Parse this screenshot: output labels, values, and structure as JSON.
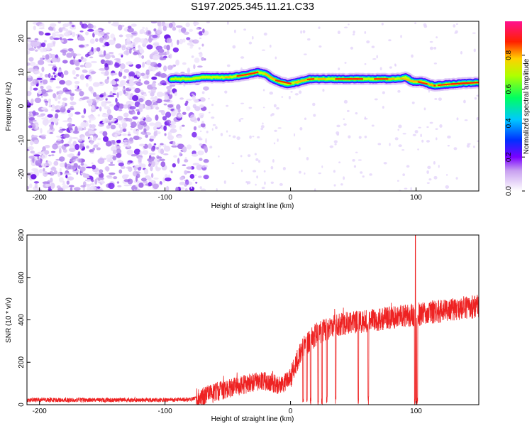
{
  "title": "S197.2025.345.11.21.C33",
  "chart_data": [
    {
      "type": "heatmap",
      "xlabel": "Height of straight line (km)",
      "ylabel": "Frequency (Hz)",
      "xlim": [
        -210,
        150
      ],
      "ylim": [
        -25,
        25
      ],
      "xticks": [
        -200,
        -100,
        0,
        100
      ],
      "yticks": [
        -20,
        -10,
        0,
        10,
        20
      ],
      "colorbar": {
        "label": "Normalized spectral amplitude",
        "ticks": [
          0.0,
          0.2,
          0.4,
          0.6,
          0.8
        ],
        "range": [
          0,
          1
        ]
      },
      "noise_region_x": [
        -210,
        -77
      ],
      "signal_ridge": {
        "x": [
          -95,
          -80,
          -70,
          -60,
          -50,
          -40,
          -32,
          -26,
          -20,
          -14,
          -8,
          -2,
          5,
          15,
          30,
          50,
          70,
          85,
          92,
          96,
          100,
          104,
          110,
          115,
          120,
          128,
          140,
          150
        ],
        "freq": [
          8,
          8,
          8.5,
          8.5,
          8.5,
          9,
          9.5,
          10,
          9.5,
          8,
          7,
          6.5,
          7,
          8,
          8,
          8,
          8,
          8,
          8.5,
          7.5,
          7,
          7.3,
          6.5,
          6,
          6.3,
          6.5,
          6.8,
          7
        ]
      }
    },
    {
      "type": "line",
      "xlabel": "Height of straight line (km)",
      "ylabel": "SNR (10 * v/v)",
      "xlim": [
        -210,
        150
      ],
      "ylim": [
        0,
        800
      ],
      "xticks": [
        -200,
        -100,
        0,
        100
      ],
      "yticks": [
        0,
        200,
        400,
        600,
        800
      ],
      "color": "#ee2222",
      "trend": {
        "x": [
          -210,
          -150,
          -100,
          -80,
          -70,
          -50,
          -30,
          -20,
          -10,
          -5,
          0,
          5,
          10,
          20,
          30,
          40,
          60,
          80,
          100,
          120,
          140,
          150
        ],
        "y": [
          22,
          22,
          22,
          25,
          40,
          75,
          105,
          110,
          95,
          100,
          130,
          200,
          270,
          330,
          360,
          380,
          395,
          410,
          425,
          440,
          455,
          465
        ]
      },
      "dips_x": [
        10,
        13,
        16,
        22,
        25,
        29,
        36,
        54,
        62,
        99,
        100,
        101
      ],
      "spike": {
        "x": 99.5,
        "y": 800
      }
    }
  ]
}
